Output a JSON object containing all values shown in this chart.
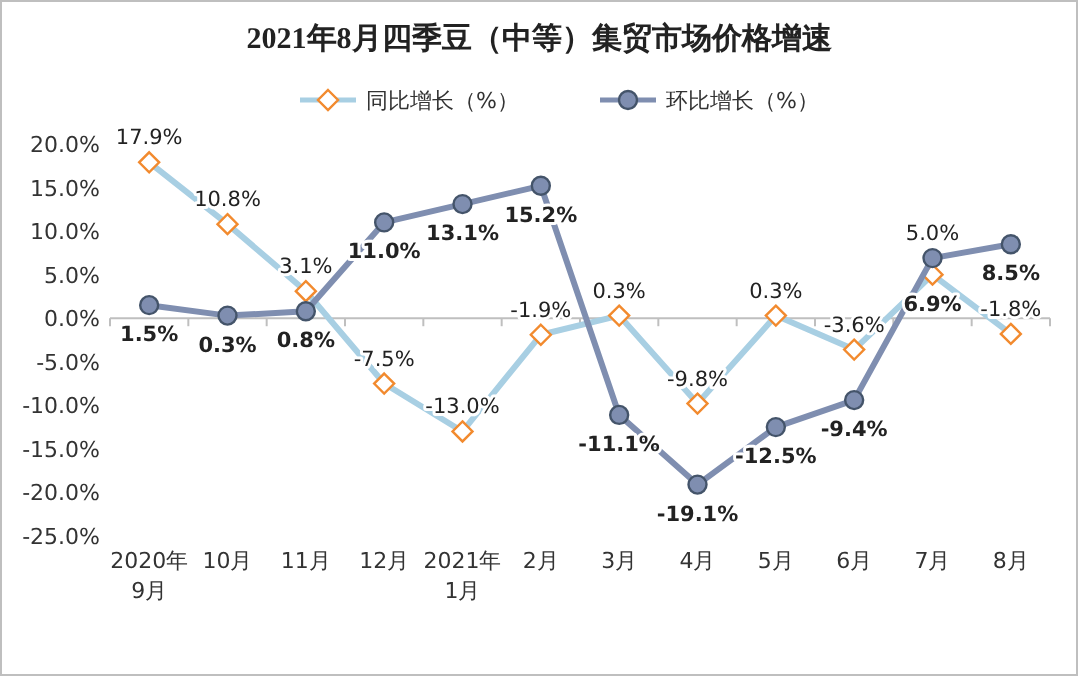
{
  "chart_data": {
    "type": "line",
    "title": "2021年8月四季豆（中等）集贸市场价格增速",
    "categories": [
      "2020年\n9月",
      "10月",
      "11月",
      "12月",
      "2021年\n1月",
      "2月",
      "3月",
      "4月",
      "5月",
      "6月",
      "7月",
      "8月"
    ],
    "series": [
      {
        "name": "同比增长（%）",
        "color": "#a8cfe3",
        "marker": "diamond",
        "values": [
          17.9,
          10.8,
          3.1,
          -7.5,
          -13.0,
          -1.9,
          0.3,
          -9.8,
          0.3,
          -3.6,
          5.0,
          -1.8
        ],
        "value_labels": [
          "17.9%",
          "10.8%",
          "3.1%",
          "-7.5%",
          "-13.0%",
          "-1.9%",
          "0.3%",
          "-9.8%",
          "0.3%",
          "-3.6%",
          "5.0%",
          "-1.8%"
        ]
      },
      {
        "name": "环比增长（%）",
        "color": "#7f8eb0",
        "marker": "circle",
        "values": [
          1.5,
          0.3,
          0.8,
          11.0,
          13.1,
          15.2,
          -11.1,
          -19.1,
          -12.5,
          -9.4,
          6.9,
          8.5
        ],
        "value_labels": [
          "1.5%",
          "0.3%",
          "0.8%",
          "11.0%",
          "13.1%",
          "15.2%",
          "-11.1%",
          "-19.1%",
          "-12.5%",
          "-9.4%",
          "6.9%",
          "8.5%"
        ]
      }
    ],
    "ylim": [
      -25,
      20
    ],
    "yticks": [
      {
        "value": 20,
        "label": "20.0%"
      },
      {
        "value": 15,
        "label": "15.0%"
      },
      {
        "value": 10,
        "label": "10.0%"
      },
      {
        "value": 5,
        "label": "5.0%"
      },
      {
        "value": 0,
        "label": "0.0%"
      },
      {
        "value": -5,
        "label": "-5.0%"
      },
      {
        "value": -10,
        "label": "-10.0%"
      },
      {
        "value": -15,
        "label": "-15.0%"
      },
      {
        "value": -20,
        "label": "-20.0%"
      },
      {
        "value": -25,
        "label": "-25.0%"
      }
    ],
    "legend": "top"
  }
}
